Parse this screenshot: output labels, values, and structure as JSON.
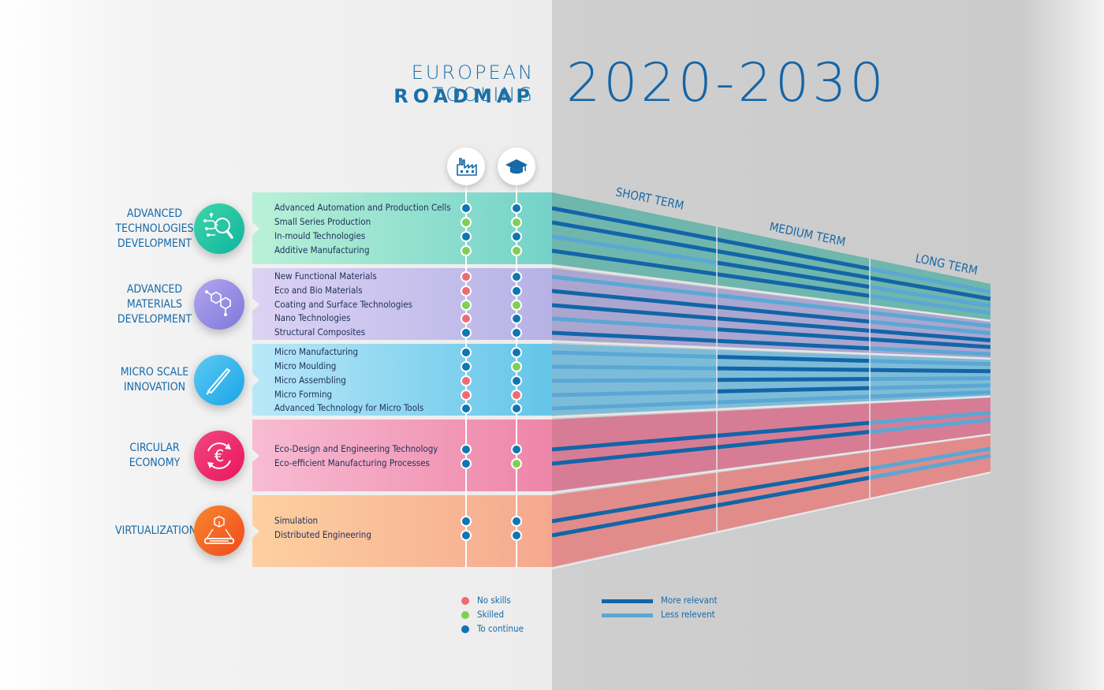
{
  "title": {
    "line1": "EUROPEAN TOOLING",
    "line2": "ROADMAP",
    "years": "2020-2030"
  },
  "header_icons": [
    {
      "name": "industry-icon",
      "meaning": "factory"
    },
    {
      "name": "education-icon",
      "meaning": "graduation-cap"
    }
  ],
  "terms": [
    "SHORT TERM",
    "MEDIUM TERM",
    "LONG TERM"
  ],
  "colors": {
    "no_skills": "#ef6b73",
    "skilled": "#7fcf55",
    "to_continue": "#0f76b4",
    "more_relevant": "#1265a8",
    "less_relevant": "#5ba7d4"
  },
  "categories": [
    {
      "label": "ADVANCED\nTECHNOLOGIES\nDEVELOPMENT",
      "icon": "technology-magnifier-icon",
      "gradient": [
        "#0fb4a0",
        "#3fd6a8"
      ],
      "band": [
        "#b9f1d7",
        "#73d2c8"
      ],
      "perspective": "#6fb6ad",
      "items": [
        {
          "name": "Advanced Automation and Production Cells",
          "industry": "to_continue",
          "education": "to_continue",
          "relevance": [
            "more",
            "more",
            "less"
          ]
        },
        {
          "name": "Small Series Production",
          "industry": "skilled",
          "education": "skilled",
          "relevance": [
            "more",
            "more",
            "more"
          ]
        },
        {
          "name": "In-mould Technologies",
          "industry": "to_continue",
          "education": "to_continue",
          "relevance": [
            "less",
            "more",
            "less"
          ]
        },
        {
          "name": "Additive Manufacturing",
          "industry": "skilled",
          "education": "skilled",
          "relevance": [
            "more",
            "more",
            "less"
          ]
        }
      ]
    },
    {
      "label": "ADVANCED\nMATERIALS\nDEVELOPMENT",
      "icon": "molecule-icon",
      "gradient": [
        "#7f78dc",
        "#b1a6ec"
      ],
      "band": [
        "#dcd3f3",
        "#b6b2e6"
      ],
      "perspective": "#aaa6cf",
      "items": [
        {
          "name": "New Functional Materials",
          "industry": "no_skills",
          "education": "to_continue",
          "relevance": [
            "less",
            "less",
            "less"
          ]
        },
        {
          "name": "Eco and Bio Materials",
          "industry": "no_skills",
          "education": "to_continue",
          "relevance": [
            "more",
            "more",
            "less"
          ]
        },
        {
          "name": "Coating and Surface Technologies",
          "industry": "skilled",
          "education": "skilled",
          "relevance": [
            "more",
            "more",
            "more"
          ]
        },
        {
          "name": "Nano Technologies",
          "industry": "no_skills",
          "education": "to_continue",
          "relevance": [
            "less",
            "more",
            "more"
          ]
        },
        {
          "name": "Structural Composites",
          "industry": "to_continue",
          "education": "to_continue",
          "relevance": [
            "more",
            "more",
            "less"
          ]
        }
      ]
    },
    {
      "label": "MICRO SCALE\nINNOVATION",
      "icon": "tweezers-icon",
      "gradient": [
        "#1aa6e8",
        "#5cc9f2"
      ],
      "band": [
        "#b9e8f8",
        "#63c5e8"
      ],
      "perspective": "#7dbcd8",
      "items": [
        {
          "name": "Micro Manufacturing",
          "industry": "to_continue",
          "education": "to_continue",
          "relevance": [
            "less",
            "more",
            "less"
          ]
        },
        {
          "name": "Micro Moulding",
          "industry": "to_continue",
          "education": "skilled",
          "relevance": [
            "less",
            "more",
            "more"
          ]
        },
        {
          "name": "Micro Assembling",
          "industry": "no_skills",
          "education": "to_continue",
          "relevance": [
            "less",
            "more",
            "less"
          ]
        },
        {
          "name": "Micro Forming",
          "industry": "no_skills",
          "education": "no_skills",
          "relevance": [
            "less",
            "more",
            "less"
          ]
        },
        {
          "name": "Advanced Technology for Micro Tools",
          "industry": "to_continue",
          "education": "to_continue",
          "relevance": [
            "less",
            "less",
            "less"
          ]
        }
      ]
    },
    {
      "label": "CIRCULAR\nECONOMY",
      "icon": "euro-cycle-icon",
      "gradient": [
        "#e8175d",
        "#f2467f"
      ],
      "band": [
        "#f7bcd2",
        "#ee85a8"
      ],
      "perspective": "#d67d95",
      "items": [
        {
          "name": "Eco-Design and Engineering Technology",
          "industry": "to_continue",
          "education": "to_continue",
          "relevance": [
            "more",
            "more",
            "less"
          ]
        },
        {
          "name": "Eco-efficient Manufacturing Processes",
          "industry": "to_continue",
          "education": "skilled",
          "relevance": [
            "more",
            "more",
            "less"
          ]
        }
      ]
    },
    {
      "label": "VIRTUALIZATION",
      "icon": "hologram-cube-icon",
      "gradient": [
        "#f04b1c",
        "#f8862f"
      ],
      "band": [
        "#fdd0a0",
        "#f5a88f"
      ],
      "perspective": "#e18c8a",
      "items": [
        {
          "name": "Simulation",
          "industry": "to_continue",
          "education": "to_continue",
          "relevance": [
            "more",
            "more",
            "less"
          ]
        },
        {
          "name": "Distributed Engineering",
          "industry": "to_continue",
          "education": "to_continue",
          "relevance": [
            "more",
            "more",
            "less"
          ]
        }
      ]
    }
  ],
  "legend": {
    "dots": [
      {
        "key": "no_skills",
        "label": "No skills"
      },
      {
        "key": "skilled",
        "label": "Skilled"
      },
      {
        "key": "to_continue",
        "label": "To continue"
      }
    ],
    "bars": [
      {
        "key": "more_relevant",
        "label": "More relevant"
      },
      {
        "key": "less_relevant",
        "label": "Less relevent"
      }
    ]
  }
}
